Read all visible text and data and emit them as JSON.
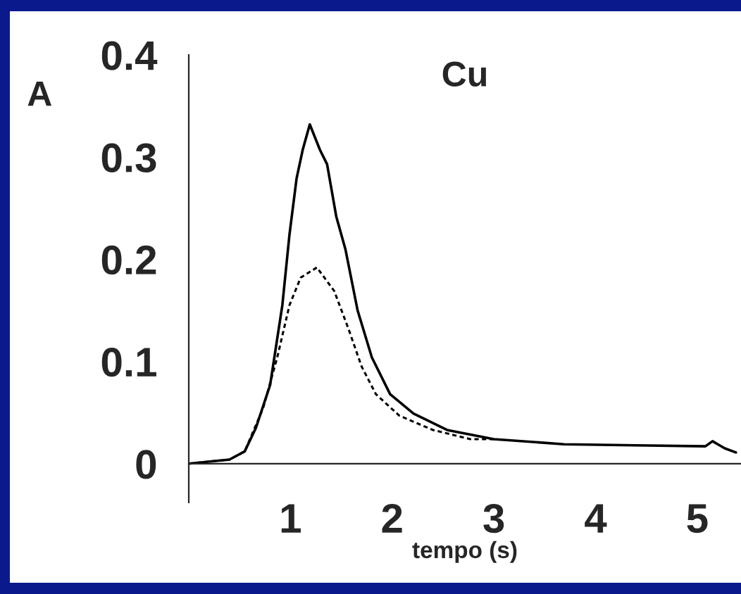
{
  "chart_data": {
    "type": "line",
    "title": "Cu",
    "xlabel": "tempo (s)",
    "ylabel": "A",
    "xlim": [
      0,
      5.43
    ],
    "ylim": [
      -0.038,
      0.4
    ],
    "xticks": [
      1,
      2,
      3,
      4,
      5
    ],
    "yticks": [
      0,
      0.1,
      0.2,
      0.3,
      0.4
    ],
    "grid": false,
    "legend": false,
    "marker": "none",
    "series": [
      {
        "color": "#000000",
        "line_style": "solid",
        "x": [
          0,
          0.4,
          0.55,
          0.66,
          0.8,
          0.92,
          0.99,
          1.06,
          1.12,
          1.19,
          1.29,
          1.36,
          1.45,
          1.54,
          1.66,
          1.8,
          1.98,
          2.21,
          2.54,
          3.0,
          3.69,
          4.39,
          5.08,
          5.15,
          5.27,
          5.38
        ],
        "values": [
          0,
          0.004,
          0.012,
          0.035,
          0.077,
          0.155,
          0.224,
          0.279,
          0.307,
          0.332,
          0.307,
          0.293,
          0.242,
          0.21,
          0.15,
          0.104,
          0.068,
          0.049,
          0.033,
          0.024,
          0.019,
          0.018,
          0.017,
          0.022,
          0.015,
          0.011
        ]
      },
      {
        "color": "#000000",
        "line_style": "dashed",
        "x": [
          0,
          0.4,
          0.55,
          0.73,
          0.87,
          0.99,
          1.1,
          1.26,
          1.43,
          1.57,
          1.7,
          1.84,
          2.07,
          2.4,
          2.77,
          3.0
        ],
        "values": [
          0,
          0.004,
          0.012,
          0.054,
          0.104,
          0.155,
          0.182,
          0.192,
          0.169,
          0.132,
          0.095,
          0.068,
          0.047,
          0.033,
          0.024,
          0.024
        ]
      }
    ]
  }
}
